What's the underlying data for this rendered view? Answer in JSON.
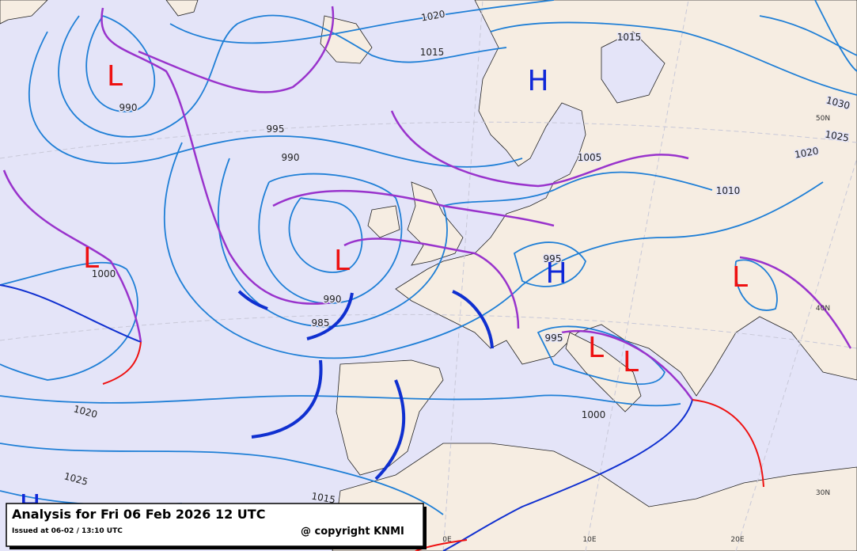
{
  "footer": {
    "title": "Analysis for Fri 06 Feb 2026 12 UTC",
    "issued": "Issued at 06-02 / 13:10 UTC",
    "copyright": "@ copyright KNMI"
  },
  "map": {
    "isobar_labels": [
      "1020",
      "1015",
      "1015",
      "990",
      "995",
      "990",
      "1005",
      "1010",
      "1000",
      "995",
      "990",
      "985",
      "995",
      "1000",
      "1020",
      "1025",
      "1030",
      "1025",
      "1020",
      "1015"
    ],
    "pressure_centers": [
      "L",
      "L",
      "L",
      "L",
      "L",
      "L",
      "H",
      "H",
      "H"
    ],
    "grid_labels": [
      "50N",
      "40N",
      "30N",
      "0E",
      "10E",
      "20E"
    ]
  }
}
